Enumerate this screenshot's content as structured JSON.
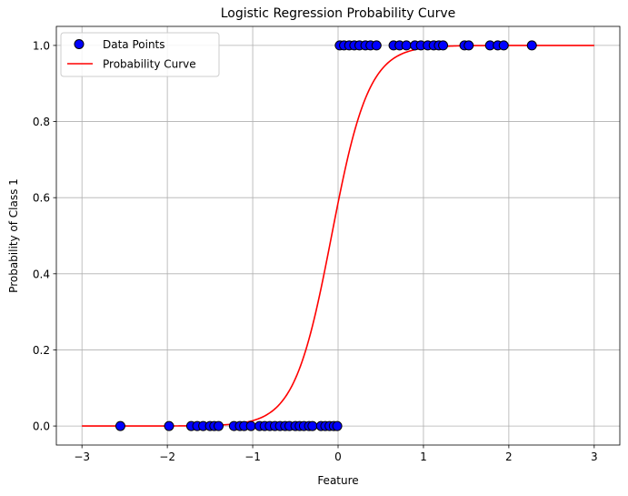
{
  "chart_data": {
    "type": "scatter",
    "title": "Logistic Regression Probability Curve",
    "xlabel": "Feature",
    "ylabel": "Probability of Class 1",
    "xlim": [
      -3.3,
      3.3
    ],
    "ylim": [
      -0.05,
      1.05
    ],
    "xticks": [
      -3,
      -2,
      -1,
      0,
      1,
      2,
      3
    ],
    "xtick_labels": [
      "−3",
      "−2",
      "−1",
      "0",
      "1",
      "2",
      "3"
    ],
    "yticks": [
      0.0,
      0.2,
      0.4,
      0.6,
      0.8,
      1.0
    ],
    "ytick_labels": [
      "0.0",
      "0.2",
      "0.4",
      "0.6",
      "0.8",
      "1.0"
    ],
    "grid": true,
    "legend_placement": "top-left",
    "series": [
      {
        "name": "Data Points",
        "kind": "scatter",
        "color": "#0000ff",
        "edge_color": "#000000",
        "points": [
          [
            -2.55,
            0
          ],
          [
            -1.98,
            0
          ],
          [
            -1.72,
            0
          ],
          [
            -1.65,
            0
          ],
          [
            -1.58,
            0
          ],
          [
            -1.5,
            0
          ],
          [
            -1.45,
            0
          ],
          [
            -1.4,
            0
          ],
          [
            -1.22,
            0
          ],
          [
            -1.15,
            0
          ],
          [
            -1.1,
            0
          ],
          [
            -1.02,
            0
          ],
          [
            -0.92,
            0
          ],
          [
            -0.86,
            0
          ],
          [
            -0.8,
            0
          ],
          [
            -0.74,
            0
          ],
          [
            -0.68,
            0
          ],
          [
            -0.62,
            0
          ],
          [
            -0.57,
            0
          ],
          [
            -0.5,
            0
          ],
          [
            -0.45,
            0
          ],
          [
            -0.4,
            0
          ],
          [
            -0.34,
            0
          ],
          [
            -0.3,
            0
          ],
          [
            -0.2,
            0
          ],
          [
            -0.15,
            0
          ],
          [
            -0.1,
            0
          ],
          [
            -0.05,
            0
          ],
          [
            -0.01,
            0
          ],
          [
            0.02,
            1
          ],
          [
            0.07,
            1
          ],
          [
            0.13,
            1
          ],
          [
            0.19,
            1
          ],
          [
            0.25,
            1
          ],
          [
            0.32,
            1
          ],
          [
            0.38,
            1
          ],
          [
            0.45,
            1
          ],
          [
            0.65,
            1
          ],
          [
            0.72,
            1
          ],
          [
            0.8,
            1
          ],
          [
            0.9,
            1
          ],
          [
            0.97,
            1
          ],
          [
            1.05,
            1
          ],
          [
            1.12,
            1
          ],
          [
            1.18,
            1
          ],
          [
            1.23,
            1
          ],
          [
            1.48,
            1
          ],
          [
            1.53,
            1
          ],
          [
            1.78,
            1
          ],
          [
            1.87,
            1
          ],
          [
            1.94,
            1
          ],
          [
            2.27,
            1
          ]
        ]
      },
      {
        "name": "Probability Curve",
        "kind": "line",
        "color": "#ff0000",
        "model": {
          "intercept": 0.35,
          "slope": 4.6
        },
        "x_range": [
          -3,
          3
        ]
      }
    ]
  }
}
